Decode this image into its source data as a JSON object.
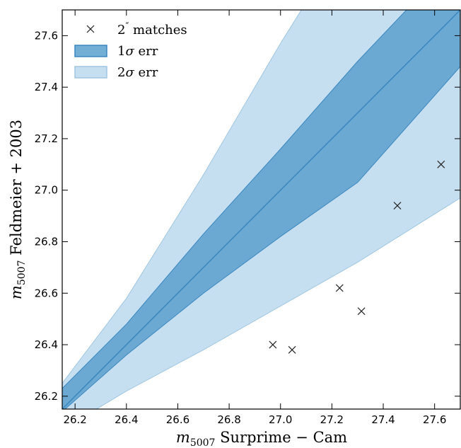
{
  "chart_data": {
    "type": "scatter",
    "xlabel": {
      "base": "m",
      "sub": "5007",
      "rest": " Surprime − Cam"
    },
    "ylabel": {
      "base": "m",
      "sub": "5007",
      "rest": " Feldmeier + 2003"
    },
    "xlim": [
      26.15,
      27.7
    ],
    "ylim": [
      26.15,
      27.7
    ],
    "xticks": [
      26.2,
      26.4,
      26.6,
      26.8,
      27.0,
      27.2,
      27.4,
      27.6
    ],
    "yticks": [
      26.2,
      26.4,
      26.6,
      26.8,
      27.0,
      27.2,
      27.4,
      27.6
    ],
    "grid": false,
    "legend_position": "top-left",
    "colors": {
      "line": "#3a87c0",
      "band1": "#5aa0cd",
      "band2": "#c6dff0",
      "marker": "#222222"
    },
    "legend": [
      {
        "kind": "marker",
        "label_main": "2",
        "label_sup": "″",
        "label_rest": " matches"
      },
      {
        "kind": "band1",
        "label_main": "1",
        "label_sym": "σ",
        "label_rest": " err"
      },
      {
        "kind": "band2",
        "label_main": "2",
        "label_sym": "σ",
        "label_rest": " err"
      }
    ],
    "series": [
      {
        "x": [
          26.97,
          27.045,
          27.23,
          27.315,
          27.455,
          27.625
        ],
        "y": [
          26.4,
          26.38,
          26.62,
          26.53,
          26.94,
          27.1
        ]
      }
    ],
    "fit_line": {
      "x": [
        26.15,
        27.7
      ],
      "y": [
        26.15,
        27.7
      ]
    },
    "band_1sigma": {
      "x": [
        26.15,
        26.4,
        26.7,
        27.0,
        27.3,
        27.7
      ],
      "lower": [
        26.14,
        26.36,
        26.6,
        26.82,
        27.03,
        27.48
      ],
      "upper": [
        26.23,
        26.48,
        26.83,
        27.16,
        27.5,
        27.92
      ]
    },
    "band_2sigma": {
      "x": [
        26.15,
        26.4,
        26.7,
        27.0,
        27.3,
        27.7
      ],
      "lower": [
        26.07,
        26.22,
        26.38,
        26.55,
        26.72,
        26.97
      ],
      "upper": [
        26.25,
        26.58,
        27.06,
        27.57,
        28.05,
        28.7
      ]
    }
  }
}
